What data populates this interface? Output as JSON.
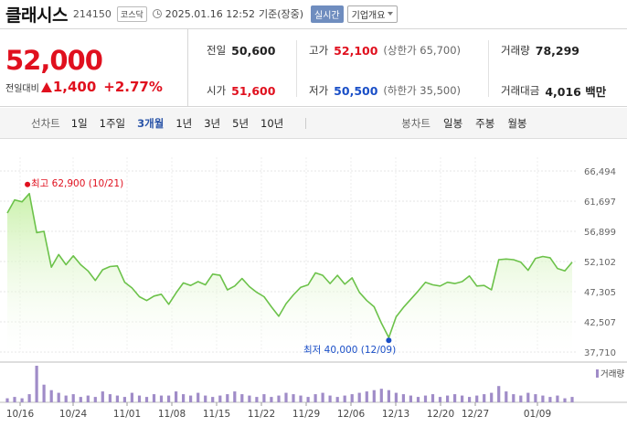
{
  "header": {
    "name": "클래시스",
    "code": "214150",
    "market_badge": "코스닥",
    "timestamp": "2025.01.16 12:52",
    "basis": "기준(장중)",
    "realtime_label": "실시간",
    "company_label": "기업개요"
  },
  "price": {
    "current": "52,000",
    "change_label": "전일대비",
    "change": "1,400",
    "change_pct": "+2.77%"
  },
  "info": {
    "prev_label": "전일",
    "prev_value": "50,600",
    "open_label": "시가",
    "open_value": "51,600",
    "high_label": "고가",
    "high_value": "52,100",
    "upper_limit": "(상한가 65,700)",
    "low_label": "저가",
    "low_value": "50,500",
    "lower_limit": "(하한가 35,500)",
    "volume_label": "거래량",
    "volume_value": "78,299",
    "amount_label": "거래대금",
    "amount_value": "4,016 백만"
  },
  "toolbar": {
    "line_label": "선차트",
    "periods": [
      "1일",
      "1주일",
      "3개월",
      "1년",
      "3년",
      "5년",
      "10년"
    ],
    "active_period": "3개월",
    "candle_label": "봉차트",
    "candles": [
      "일봉",
      "주봉",
      "월봉"
    ]
  },
  "colors": {
    "up": "#e0101e",
    "down": "#1a4fc7",
    "line": "#6cc24a",
    "area_top": "#c8f0a8",
    "volume": "#a08cc8"
  },
  "chart_data": {
    "type": "area",
    "y_ticks": [
      "66,494",
      "61,697",
      "56,899",
      "52,102",
      "47,305",
      "42,507",
      "37,710"
    ],
    "ylim": [
      37710,
      66494
    ],
    "x_labels": [
      "10/16",
      "10/24",
      "11/01",
      "11/08",
      "11/15",
      "11/22",
      "11/29",
      "12/06",
      "12/13",
      "12/20",
      "12/27",
      "01/09"
    ],
    "max_annotation": "최고 62,900 (10/21)",
    "min_annotation": "최저 40,000 (12/09)",
    "max_index": 3,
    "min_index": 52,
    "volume_legend": "거래량",
    "values": [
      59800,
      61900,
      61600,
      62900,
      56700,
      56900,
      51200,
      53200,
      51600,
      53000,
      51600,
      50600,
      49100,
      50800,
      51300,
      51400,
      48800,
      47900,
      46500,
      45900,
      46600,
      46900,
      45300,
      47100,
      48700,
      48300,
      48900,
      48400,
      50100,
      49900,
      47600,
      48200,
      49400,
      48100,
      47200,
      46500,
      44900,
      43400,
      45400,
      46800,
      48000,
      48400,
      50300,
      49900,
      48600,
      49900,
      48500,
      49500,
      47200,
      45900,
      44900,
      42300,
      40000,
      43300,
      44800,
      46100,
      47400,
      48800,
      48400,
      48200,
      48800,
      48600,
      48900,
      49800,
      48200,
      48300,
      47600,
      52400,
      52500,
      52400,
      52000,
      50700,
      52600,
      52900,
      52700,
      51000,
      50600,
      52000
    ],
    "volumes": [
      3,
      4,
      3,
      6,
      27,
      13,
      9,
      7,
      5,
      6,
      4,
      5,
      4,
      8,
      6,
      5,
      4,
      7,
      5,
      4,
      6,
      5,
      5,
      8,
      6,
      5,
      7,
      5,
      4,
      5,
      6,
      8,
      6,
      5,
      4,
      6,
      4,
      5,
      7,
      6,
      5,
      4,
      6,
      7,
      5,
      4,
      5,
      6,
      7,
      8,
      9,
      10,
      9,
      7,
      6,
      5,
      4,
      5,
      6,
      4,
      5,
      6,
      5,
      4,
      5,
      6,
      7,
      12,
      8,
      6,
      5,
      7,
      6,
      5,
      4,
      5,
      3,
      4
    ]
  }
}
